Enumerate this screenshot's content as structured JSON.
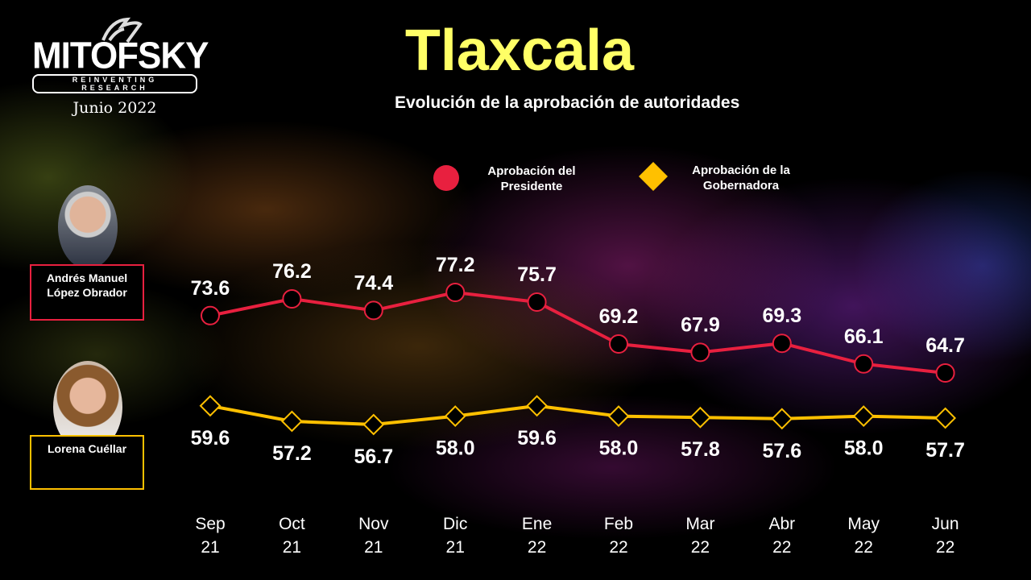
{
  "logo": {
    "brand": "MITOFSKY",
    "tagline": "REINVENTING RESEARCH",
    "date": "Junio 2022"
  },
  "colors": {
    "president": "#e8203f",
    "governor": "#ffc000",
    "title": "#ffff66"
  },
  "people": {
    "president": "Andrés Manuel López Obrador",
    "governor": "Lorena Cuéllar"
  },
  "chart_data": {
    "type": "line",
    "title": "Tlaxcala",
    "subtitle": "Evolución de la aprobación de autoridades",
    "categories": [
      [
        "Sep",
        "21"
      ],
      [
        "Oct",
        "21"
      ],
      [
        "Nov",
        "21"
      ],
      [
        "Dic",
        "21"
      ],
      [
        "Ene",
        "22"
      ],
      [
        "Feb",
        "22"
      ],
      [
        "Mar",
        "22"
      ],
      [
        "Abr",
        "22"
      ],
      [
        "May",
        "22"
      ],
      [
        "Jun",
        "22"
      ]
    ],
    "legend_position": "top",
    "grid": false,
    "series": [
      {
        "name": "Aprobación del Presidente",
        "marker": "circle",
        "color": "#e8203f",
        "values": [
          73.6,
          76.2,
          74.4,
          77.2,
          75.7,
          69.2,
          67.9,
          69.3,
          66.1,
          64.7
        ]
      },
      {
        "name": "Aprobación de la Gobernadora",
        "marker": "diamond",
        "color": "#ffc000",
        "values": [
          59.6,
          57.2,
          56.7,
          58.0,
          59.6,
          58.0,
          57.8,
          57.6,
          58.0,
          57.7
        ]
      }
    ]
  }
}
